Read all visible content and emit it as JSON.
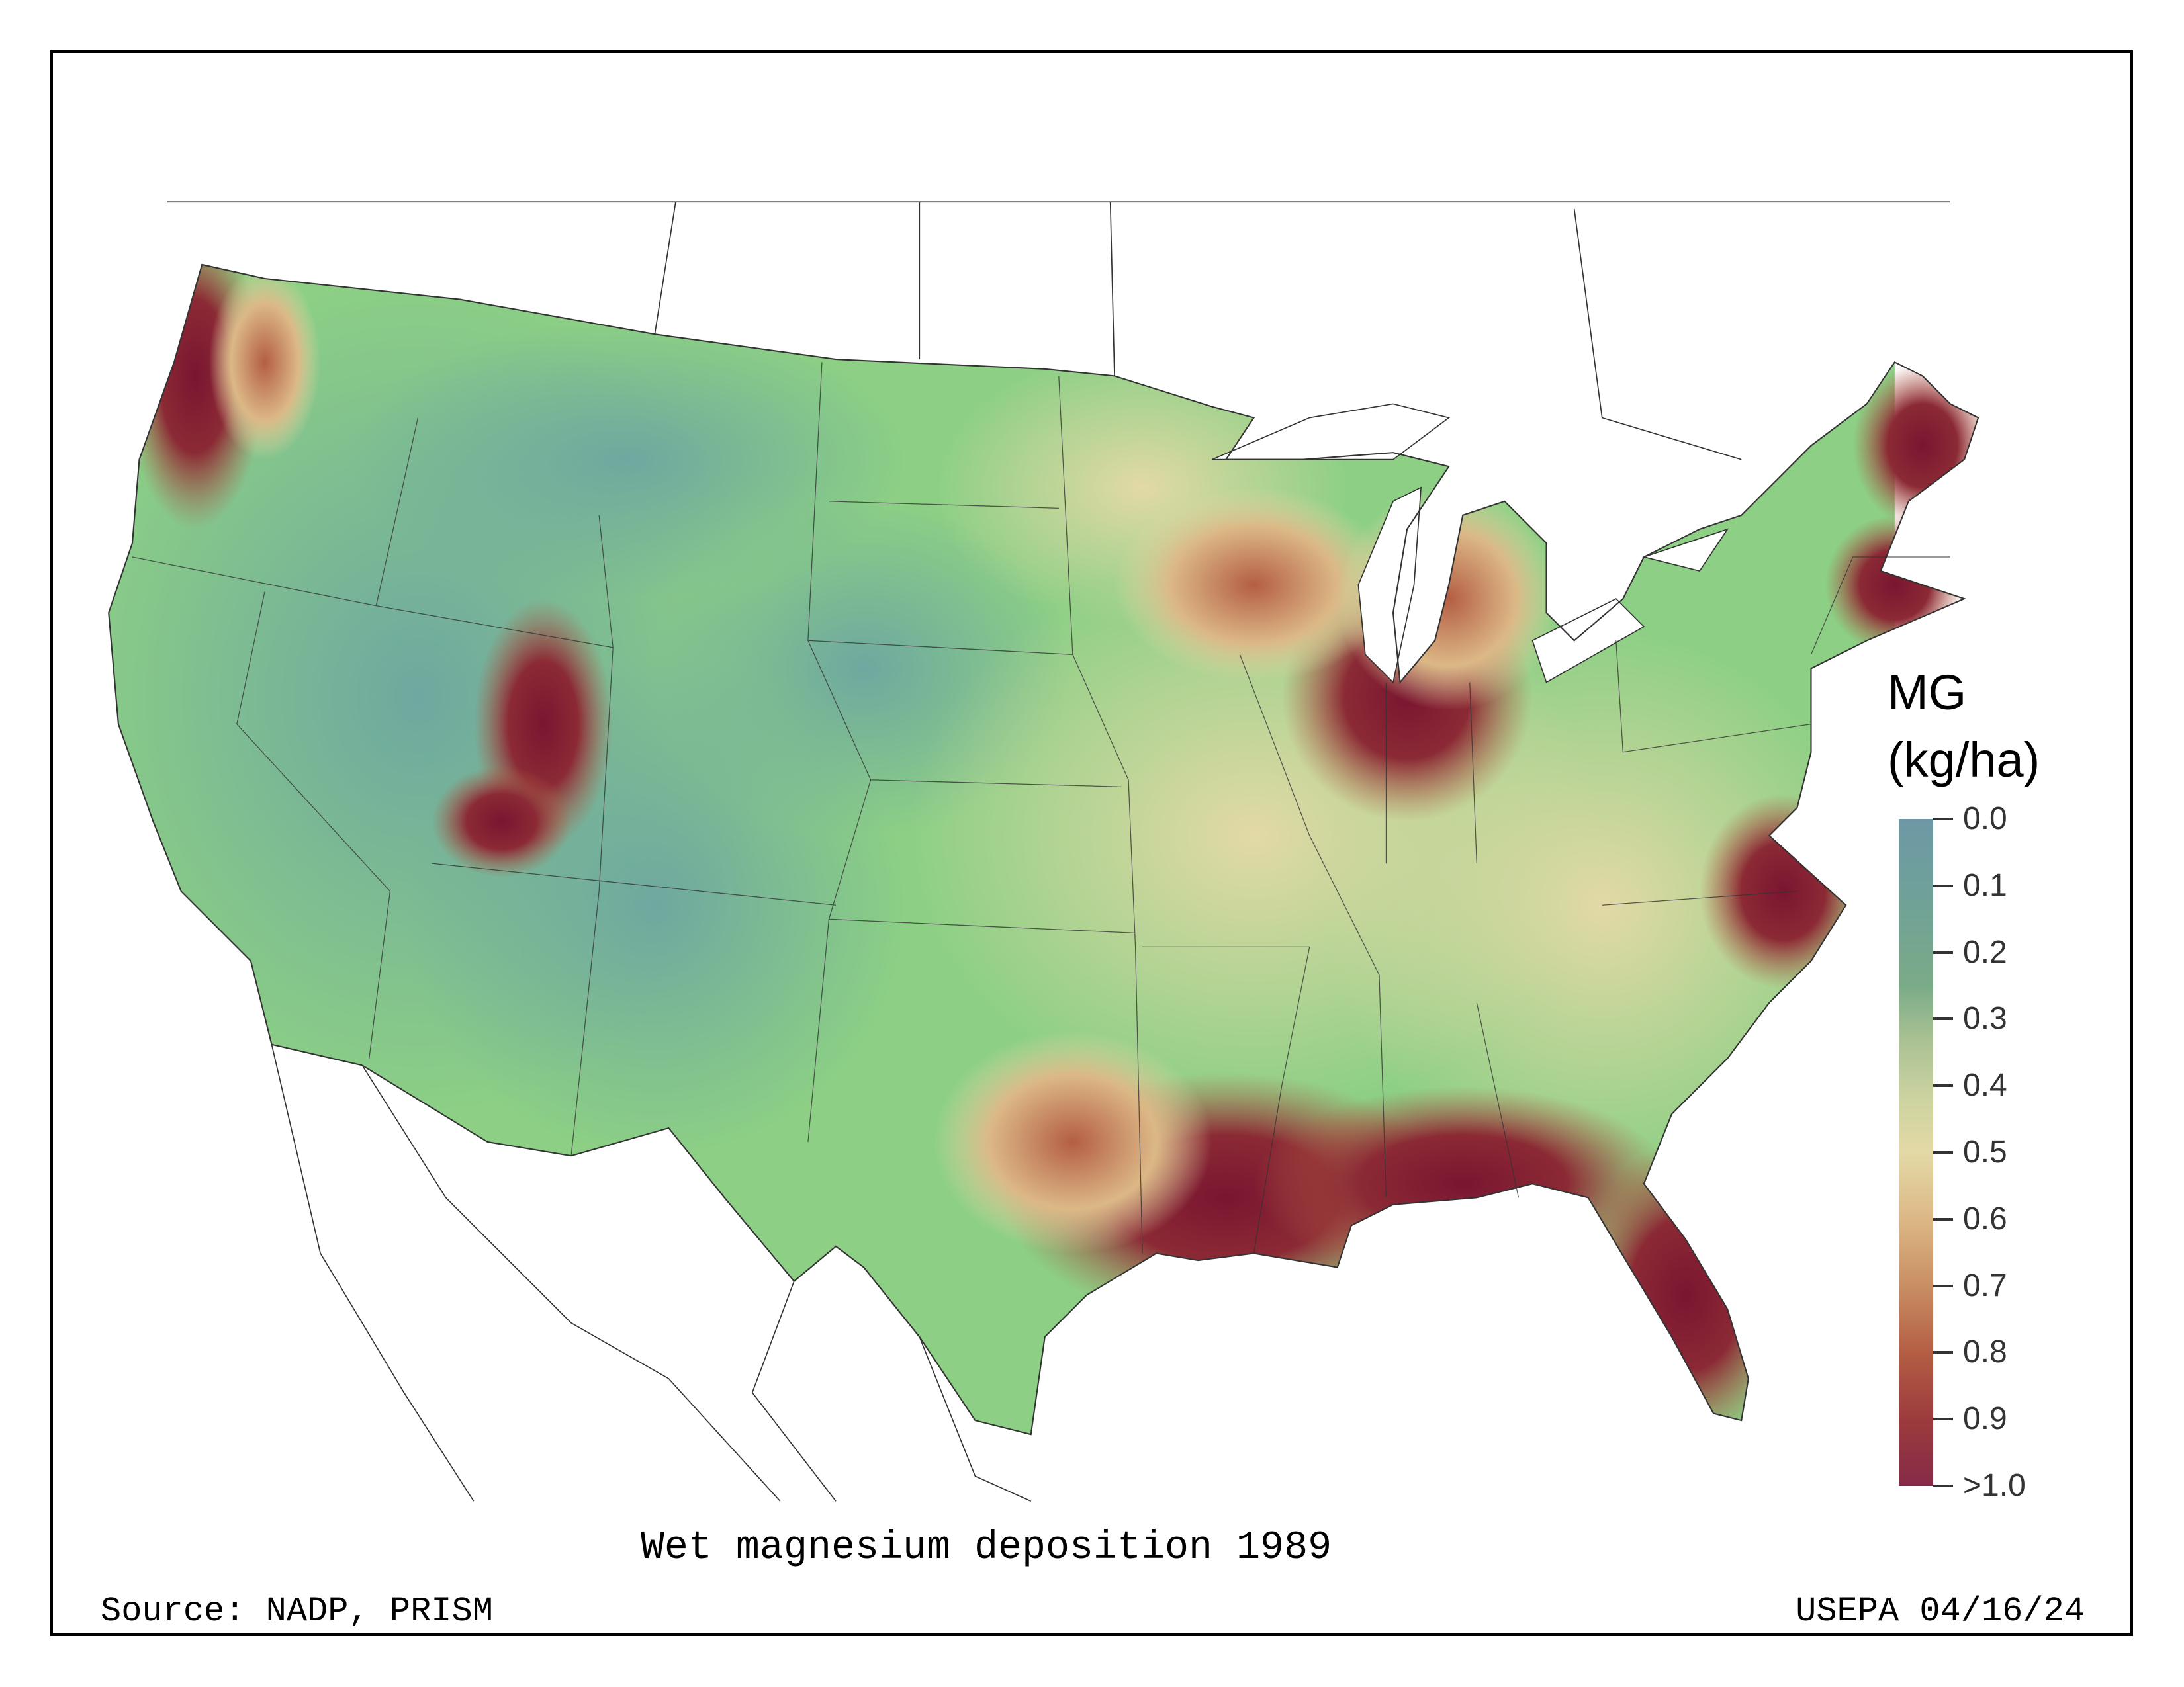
{
  "map": {
    "title": "Wet magnesium deposition 1989",
    "source": "Source: NADP, PRISM",
    "credit": "USEPA 04/16/24",
    "legend": {
      "variable": "MG",
      "units": "(kg/ha)",
      "ticks": [
        "0.0",
        "0.1",
        "0.2",
        "0.3",
        "0.4",
        "0.5",
        "0.6",
        "0.7",
        "0.8",
        "0.9",
        ">1.0"
      ],
      "colors": {
        "low": "#6e98a6",
        "mid_green": "#7aab88",
        "mid": "#e3d9a6",
        "high": "#b45e44",
        "max": "#862a48"
      }
    }
  }
}
